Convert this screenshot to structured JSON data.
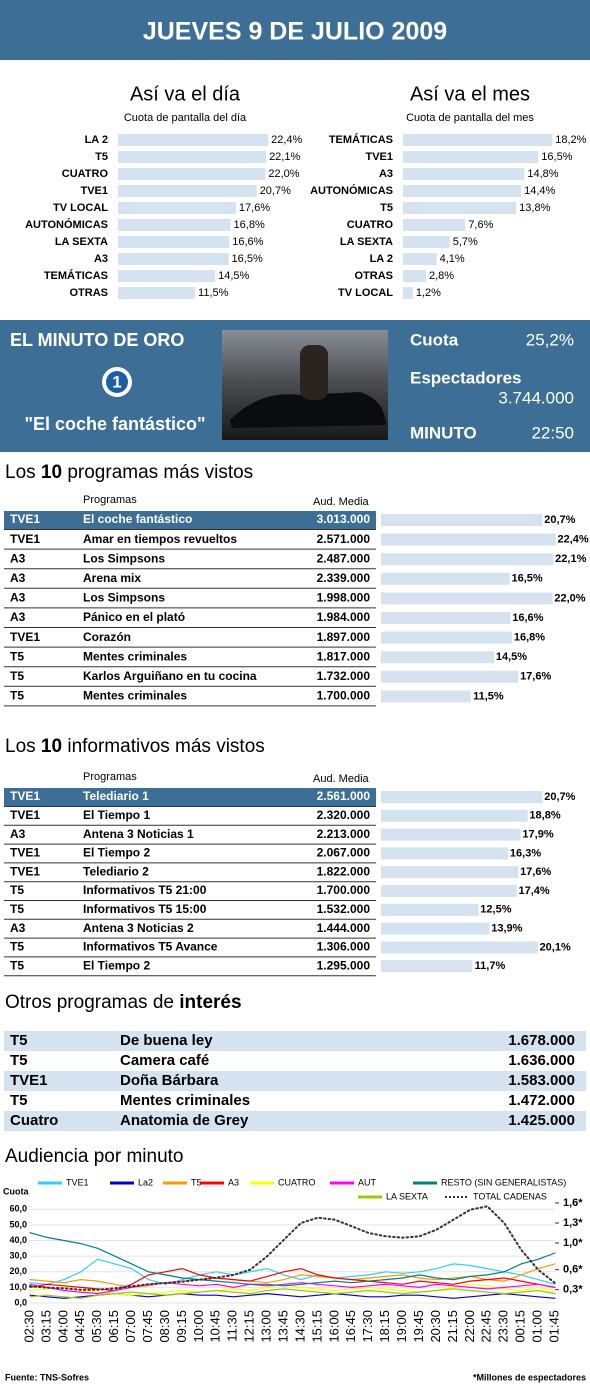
{
  "header": {
    "title": "JUEVES 9 DE JULIO 2009"
  },
  "chart_data": [
    {
      "type": "hbar",
      "title": "Así va el día",
      "subtitle": "Cuota de pantalla del día",
      "color": "#d5e2ef",
      "categories": [
        "LA 2",
        "T5",
        "CUATRO",
        "TVE1",
        "TV LOCAL",
        "AUTONÓMICAS",
        "LA SEXTA",
        "A3",
        "TEMÁTICAS",
        "OTRAS"
      ],
      "values": [
        22.4,
        22.1,
        22.0,
        20.7,
        17.6,
        16.8,
        16.6,
        16.5,
        14.5,
        11.5
      ],
      "value_labels": [
        "22,4%",
        "22,1%",
        "22,0%",
        "20,7%",
        "17,6%",
        "16,8%",
        "16,6%",
        "16,5%",
        "14,5%",
        "11,5%"
      ]
    },
    {
      "type": "hbar",
      "title": "Así va el mes",
      "subtitle": "Cuota de pantalla del mes",
      "color": "#d5e2ef",
      "categories": [
        "TEMÁTICAS",
        "TVE1",
        "A3",
        "AUTONÓMICAS",
        "T5",
        "CUATRO",
        "LA SEXTA",
        "LA 2",
        "OTRAS",
        "TV LOCAL"
      ],
      "values": [
        18.2,
        16.5,
        14.8,
        14.4,
        13.8,
        7.6,
        5.7,
        4.1,
        2.8,
        1.2
      ],
      "value_labels": [
        "18,2%",
        "16,5%",
        "14,8%",
        "14,4%",
        "13,8%",
        "7,6%",
        "5,7%",
        "4,1%",
        "2,8%",
        "1,2%"
      ]
    },
    {
      "type": "line",
      "title": "Audiencia por minuto",
      "y_label": "Cuota",
      "grid": true,
      "source": "Fuente:  TNS-Sofres",
      "note": "*Millones de espectadores",
      "categories": [
        "02:30",
        "03:15",
        "04:00",
        "04:45",
        "05:30",
        "06:15",
        "07:00",
        "07:45",
        "08:30",
        "09:15",
        "10:00",
        "10:45",
        "11:30",
        "12:15",
        "13:00",
        "13:45",
        "14:30",
        "15:15",
        "16:00",
        "16:45",
        "17:30",
        "18:15",
        "19:00",
        "19:45",
        "20:30",
        "21:15",
        "22:00",
        "22:45",
        "23:30",
        "00:15",
        "01:00",
        "01:45"
      ],
      "ylim": [
        0,
        64
      ],
      "yticks": [
        {
          "value": 0,
          "label": "0,0"
        },
        {
          "value": 10,
          "label": "10,0"
        },
        {
          "value": 20,
          "label": "20,0"
        },
        {
          "value": 30,
          "label": "30,0"
        },
        {
          "value": 40,
          "label": "40,0"
        },
        {
          "value": 50,
          "label": "50,0"
        },
        {
          "value": 60,
          "label": "60,0"
        }
      ],
      "y2lim": [
        0.1,
        1.6
      ],
      "y2ticks": [
        {
          "value": 0.3,
          "label": "0,3*"
        },
        {
          "value": 0.6,
          "label": "0,6*"
        },
        {
          "value": 1.0,
          "label": "1,0*"
        },
        {
          "value": 1.3,
          "label": "1,3*"
        },
        {
          "value": 1.6,
          "label": "1,6*"
        }
      ],
      "series": [
        {
          "name": "TVE1",
          "color": "#33ccff",
          "values": [
            13,
            12,
            15,
            20,
            28,
            25,
            22,
            15,
            12,
            15,
            18,
            20,
            18,
            20,
            22,
            18,
            15,
            18,
            16,
            17,
            18,
            20,
            19,
            20,
            22,
            25,
            24,
            22,
            20,
            18,
            15,
            12
          ]
        },
        {
          "name": "La2",
          "color": "#0000cc",
          "values": [
            5,
            4,
            3,
            4,
            5,
            6,
            5,
            4,
            5,
            6,
            5,
            5,
            4,
            5,
            6,
            5,
            4,
            5,
            6,
            5,
            4,
            4,
            5,
            5,
            4,
            3,
            4,
            5,
            6,
            5,
            4,
            3
          ]
        },
        {
          "name": "T5",
          "color": "#ff9900",
          "values": [
            15,
            14,
            13,
            15,
            14,
            12,
            10,
            11,
            13,
            14,
            15,
            16,
            15,
            14,
            13,
            15,
            18,
            17,
            16,
            15,
            16,
            17,
            18,
            16,
            15,
            16,
            17,
            15,
            14,
            18,
            22,
            25
          ]
        },
        {
          "name": "A3",
          "color": "#ff0000",
          "values": [
            10,
            12,
            11,
            10,
            9,
            8,
            12,
            18,
            20,
            22,
            18,
            16,
            15,
            14,
            17,
            20,
            22,
            18,
            16,
            15,
            14,
            13,
            12,
            14,
            13,
            12,
            14,
            15,
            16,
            14,
            12,
            10
          ]
        },
        {
          "name": "CUATRO",
          "color": "#ffff00",
          "values": [
            8,
            9,
            10,
            8,
            7,
            6,
            5,
            6,
            7,
            8,
            7,
            8,
            9,
            8,
            10,
            12,
            10,
            9,
            8,
            9,
            10,
            9,
            8,
            7,
            8,
            10,
            12,
            11,
            9,
            8,
            10,
            8
          ]
        },
        {
          "name": "AUT",
          "color": "#ff00ff",
          "values": [
            12,
            10,
            8,
            7,
            6,
            8,
            10,
            12,
            13,
            12,
            11,
            12,
            10,
            12,
            11,
            12,
            13,
            12,
            11,
            10,
            11,
            12,
            11,
            10,
            12,
            11,
            10,
            9,
            10,
            11,
            12,
            10
          ]
        },
        {
          "name": "RESTO (SIN GENERALISTAS)",
          "color": "#008080",
          "values": [
            45,
            42,
            40,
            38,
            35,
            30,
            25,
            20,
            18,
            16,
            15,
            14,
            13,
            12,
            12,
            11,
            12,
            13,
            14,
            13,
            14,
            15,
            16,
            18,
            16,
            15,
            17,
            18,
            20,
            25,
            28,
            32
          ]
        },
        {
          "name": "LA SEXTA",
          "color": "#99cc00",
          "values": [
            4,
            5,
            4,
            3,
            5,
            6,
            7,
            6,
            5,
            6,
            7,
            8,
            7,
            6,
            8,
            9,
            8,
            7,
            6,
            7,
            8,
            7,
            6,
            7,
            8,
            9,
            8,
            7,
            6,
            7,
            8,
            6
          ]
        },
        {
          "name": "TOTAL CADENAS",
          "color": "#333333",
          "axis": "y2",
          "line_style": "dotted",
          "values": [
            0.35,
            0.33,
            0.32,
            0.3,
            0.3,
            0.32,
            0.35,
            0.38,
            0.4,
            0.42,
            0.45,
            0.48,
            0.52,
            0.6,
            0.8,
            1.05,
            1.3,
            1.38,
            1.35,
            1.25,
            1.15,
            1.1,
            1.08,
            1.1,
            1.2,
            1.35,
            1.5,
            1.55,
            1.3,
            0.9,
            0.6,
            0.4
          ]
        }
      ]
    }
  ],
  "minuto_oro": {
    "title": "EL MINUTO DE ORO",
    "logo": "1",
    "program": "\"El coche fantástico\"",
    "cuota_label": "Cuota",
    "cuota": "25,2%",
    "espectadores_label": "Espectadores",
    "espectadores": "3.744.000",
    "minuto_label": "MINUTO",
    "minuto": "22:50"
  },
  "top_programas": {
    "title": [
      "Los ",
      "10",
      " programas más vistos"
    ],
    "columns": [
      "Programas",
      "Aud. Media"
    ],
    "rows": [
      [
        "TVE1",
        "El coche fantástico",
        "3.013.000"
      ],
      [
        "TVE1",
        "Amar en tiempos revueltos",
        "2.571.000"
      ],
      [
        "A3",
        "Los Simpsons",
        "2.487.000"
      ],
      [
        "A3",
        "Arena mix",
        "2.339.000"
      ],
      [
        "A3",
        "Los Simpsons",
        "1.998.000"
      ],
      [
        "A3",
        "Pánico en el plató",
        "1.984.000"
      ],
      [
        "TVE1",
        "Corazón",
        "1.897.000"
      ],
      [
        "T5",
        "Mentes criminales",
        "1.817.000"
      ],
      [
        "T5",
        "Karlos Arguiñano en tu cocina",
        "1.732.000"
      ],
      [
        "T5",
        "Mentes criminales",
        "1.700.000"
      ]
    ],
    "shares": [
      20.7,
      22.4,
      22.1,
      16.5,
      22.0,
      16.6,
      16.8,
      14.5,
      17.6,
      11.5
    ],
    "share_labels": [
      "20,7%",
      "22,4%",
      "22,1%",
      "16,5%",
      "22,0%",
      "16,6%",
      "16,8%",
      "14,5%",
      "17,6%",
      "11,5%"
    ]
  },
  "top_informativos": {
    "title": [
      "Los ",
      "10",
      " informativos más vistos"
    ],
    "columns": [
      "Programas",
      "Aud. Media"
    ],
    "rows": [
      [
        "TVE1",
        "Telediario 1",
        "2.561.000"
      ],
      [
        "TVE1",
        "El Tiempo 1",
        "2.320.000"
      ],
      [
        "A3",
        "Antena 3 Noticias 1",
        "2.213.000"
      ],
      [
        "TVE1",
        "El Tiempo 2",
        "2.067.000"
      ],
      [
        "TVE1",
        "Telediario 2",
        "1.822.000"
      ],
      [
        "T5",
        "Informativos T5 21:00",
        "1.700.000"
      ],
      [
        "T5",
        "Informativos T5 15:00",
        "1.532.000"
      ],
      [
        "A3",
        "Antena 3 Noticias 2",
        "1.444.000"
      ],
      [
        "T5",
        "Informativos T5 Avance",
        "1.306.000"
      ],
      [
        "T5",
        "El Tiempo 2",
        "1.295.000"
      ]
    ],
    "shares": [
      20.7,
      18.8,
      17.9,
      16.3,
      17.6,
      17.4,
      12.5,
      13.9,
      20.1,
      11.7
    ],
    "share_labels": [
      "20,7%",
      "18,8%",
      "17,9%",
      "16,3%",
      "17,6%",
      "17,4%",
      "12,5%",
      "13,9%",
      "20,1%",
      "11,7%"
    ]
  },
  "otros": {
    "title": [
      "Otros programas de ",
      "interés"
    ],
    "rows": [
      [
        "T5",
        "De buena ley",
        "1.678.000"
      ],
      [
        "T5",
        "Camera café",
        "1.636.000"
      ],
      [
        "TVE1",
        "Doña Bárbara",
        "1.583.000"
      ],
      [
        "T5",
        "Mentes criminales",
        "1.472.000"
      ],
      [
        "Cuatro",
        "Anatomia de Grey",
        "1.425.000"
      ]
    ]
  }
}
